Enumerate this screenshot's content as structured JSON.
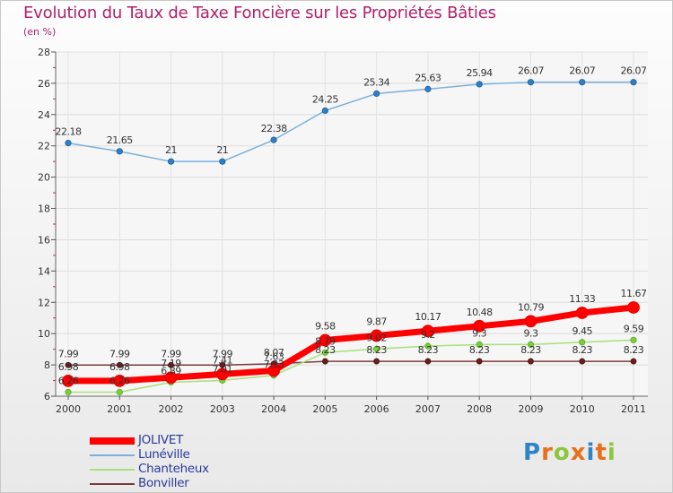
{
  "header": {
    "title": "Evolution du Taux de Taxe Foncière sur les Propriétés Bâties",
    "unit": "(en %)"
  },
  "logo": {
    "letters": [
      "P",
      "r",
      "o",
      "x",
      "i",
      "t",
      "i"
    ],
    "colors": [
      "#2f84c6",
      "#e8701a",
      "#8cc63f",
      "#e8701a",
      "#2f84c6",
      "#e8701a",
      "#8cc63f"
    ]
  },
  "chart_data": {
    "type": "line",
    "categories": [
      "2000",
      "2001",
      "2002",
      "2003",
      "2004",
      "2005",
      "2006",
      "2007",
      "2008",
      "2009",
      "2010",
      "2011"
    ],
    "ylim": [
      6,
      28
    ],
    "yticks": [
      6,
      8,
      10,
      12,
      14,
      16,
      18,
      20,
      22,
      24,
      26,
      28
    ],
    "grid": true,
    "legend_position": "bottom-left",
    "series": [
      {
        "name": "JOLIVET",
        "color": "#ff0000",
        "values": [
          6.98,
          6.98,
          7.19,
          7.41,
          7.63,
          9.58,
          9.87,
          10.17,
          10.48,
          10.79,
          11.33,
          11.67
        ],
        "labels": [
          "6.98",
          "6.98",
          "7.19",
          "7.41",
          "7.63",
          "9.58",
          "9.87",
          "10.17",
          "10.48",
          "10.79",
          "11.33",
          "11.67"
        ]
      },
      {
        "name": "Lunéville",
        "color": "#7ab0dc",
        "values": [
          22.18,
          21.65,
          21,
          21,
          22.38,
          24.25,
          25.34,
          25.63,
          25.94,
          26.07,
          26.07,
          26.07
        ],
        "labels": [
          "22.18",
          "21.65",
          "21",
          "21",
          "22.38",
          "24.25",
          "25.34",
          "25.63",
          "25.94",
          "26.07",
          "26.07",
          "26.07"
        ]
      },
      {
        "name": "Chanteheux",
        "color": "#a8e07a",
        "values": [
          6.26,
          6.26,
          6.89,
          7.01,
          7.33,
          8.79,
          9.02,
          9.2,
          9.3,
          9.3,
          9.45,
          9.59
        ],
        "labels": [
          "6.26",
          "6.26",
          "6.89",
          "7.01",
          "7.33",
          "8.79",
          "9.02",
          "9.2",
          "9.3",
          "9.3",
          "9.45",
          "9.59"
        ]
      },
      {
        "name": "Bonviller",
        "color": "#7a3a3a",
        "values": [
          7.99,
          7.99,
          7.99,
          7.99,
          8.07,
          8.23,
          8.23,
          8.23,
          8.23,
          8.23,
          8.23,
          8.23
        ],
        "labels": [
          "7.99",
          "7.99",
          "7.99",
          "7.99",
          "8.07",
          "8.23",
          "8.23",
          "8.23",
          "8.23",
          "8.23",
          "8.23",
          "8.23"
        ]
      }
    ]
  }
}
